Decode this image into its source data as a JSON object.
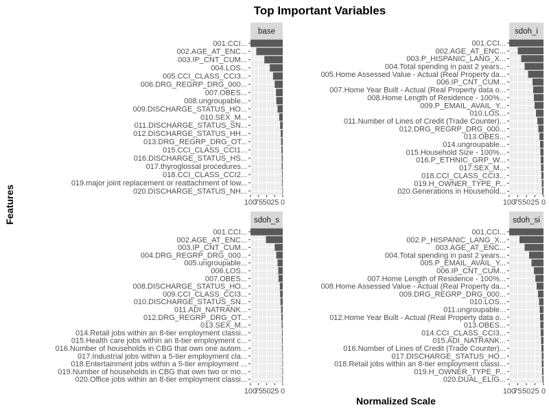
{
  "chart_data": {
    "type": "bar",
    "title": "Top Important Variables",
    "xlabel": "Normalized Scale",
    "ylabel": "Features",
    "xlim": [
      0,
      100
    ],
    "x_reversed": true,
    "x_ticks": [
      100,
      75,
      50,
      25,
      0
    ],
    "x_tick_labels": [
      "100",
      "75",
      "50",
      "25",
      "0"
    ],
    "grid": true,
    "bar_color": "#595959",
    "panel_background": "#ebebeb",
    "strip_background": "#d9d9d9",
    "panels": [
      {
        "name": "base",
        "features": [
          "001.CCI...",
          "002.AGE_AT_ENC...",
          "003.IP_CNT_CUM...",
          "004.LOS...",
          "005.CCI_CLASS_CCI3...",
          "006.DRG_REGRP_DRG_000...",
          "007.OBES...",
          "008.ungroupable...",
          "009.DISCHARGE_STATUS_HO...",
          "010.SEX_M...",
          "011.DISCHARGE_STATUS_SN...",
          "012.DISCHARGE_STATUS_HH...",
          "013.DRG_REGRP_DRG_OT...",
          "015.CCI_CLASS_CCI1...",
          "016.DISCHARGE_STATUS_HS...",
          "017.thyroglossal procedures...",
          "018.CCI_CLASS_CCI2...",
          "019.major joint replacement or reattachment of low...",
          "020.DISCHARGE_STATUS_NH..."
        ],
        "values": [
          100,
          82,
          57,
          40,
          30,
          25,
          21,
          20,
          16,
          11,
          8,
          6,
          5,
          4,
          3,
          3,
          2,
          2,
          1
        ]
      },
      {
        "name": "sdoh_i",
        "features": [
          "001.CCI...",
          "002.AGE_AT_ENC...",
          "003.P_HISPANIC_LANG_X...",
          "004.Total spending in past 2 years...",
          "005.Home Assessed Value - Actual (Real Property da...",
          "006.IP_CNT_CUM...",
          "007.Home Year Built - Actual (Real Property data o...",
          "008.Home Length of Residence - 100%...",
          "009.P_EMAIL_AVAIL_Y...",
          "010.LOS...",
          "011.Number of Lines of Credit (Trade Counter)...",
          "012.DRG_REGRP_DRG_000...",
          "013.OBES...",
          "014.ungroupable...",
          "015.Household Size - 100%...",
          "016.P_ETHNIC_GRP_W...",
          "017.SEX_M...",
          "018.CCI_CLASS_CCI3...",
          "019.H_OWNER_TYPE_P...",
          "020.Generations in Household..."
        ],
        "values": [
          100,
          75,
          65,
          55,
          45,
          32,
          30,
          28,
          26,
          22,
          18,
          15,
          12,
          10,
          9,
          8,
          7,
          6,
          5,
          4
        ]
      },
      {
        "name": "sdoh_s",
        "features": [
          "001.CCI...",
          "002.AGE_AT_ENC...",
          "003.IP_CNT_CUM...",
          "004.DRG_REGRP_DRG_000...",
          "005.ungroupable...",
          "006.LOS...",
          "007.OBES...",
          "008.DISCHARGE_STATUS_HO...",
          "009.CCI_CLASS_CCI3...",
          "010.DISCHARGE_STATUS_SN...",
          "011.ADI_NATRANK...",
          "012.DRG_REGRP_DRG_OT...",
          "013.SEX_M...",
          "014.Retail jobs within an 8-tier employment classi...",
          "015.Health care jobs within an 8-tier employment c...",
          "016.Number of households in CBG that own one autom...",
          "017.Industrial jobs within a 5-tier employment cla...",
          "018.Entertainment jobs within a 5-tier employment ...",
          "019.Number of households in CBG that own two or mo...",
          "020.Office jobs within an 8-tier employment classi..."
        ],
        "values": [
          100,
          52,
          25,
          20,
          16,
          14,
          13,
          9,
          8,
          7,
          5,
          4,
          3,
          2,
          2,
          2,
          1,
          1,
          1,
          1
        ]
      },
      {
        "name": "sdoh_si",
        "features": [
          "001.CCI...",
          "002.P_HISPANIC_LANG_X...",
          "003.AGE_AT_ENC...",
          "004.Total spending in past 2 years...",
          "005.P_EMAIL_AVAIL_Y...",
          "006.IP_CNT_CUM...",
          "007.Home Length of Residence - 100%...",
          "008.Home Assessed Value - Actual (Real Property da...",
          "009.DRG_REGRP_DRG_000...",
          "010.LOS...",
          "011.ungroupable...",
          "012.Home Year Built - Actual (Real Property data o...",
          "013.OBES...",
          "014.CCI_CLASS_CCI3...",
          "015.ADI_NATRANK...",
          "016.Number of Lines of Credit (Trade Counter)...",
          "017.DISCHARGE_STATUS_HO...",
          "018.Retail jobs within an 8-tier employment classi...",
          "019.H_OWNER_TYPE_P...",
          "020.DUAL_ELIG..."
        ],
        "values": [
          100,
          70,
          55,
          42,
          35,
          28,
          24,
          20,
          16,
          13,
          11,
          10,
          9,
          8,
          7,
          6,
          5,
          5,
          4,
          3
        ]
      }
    ]
  }
}
